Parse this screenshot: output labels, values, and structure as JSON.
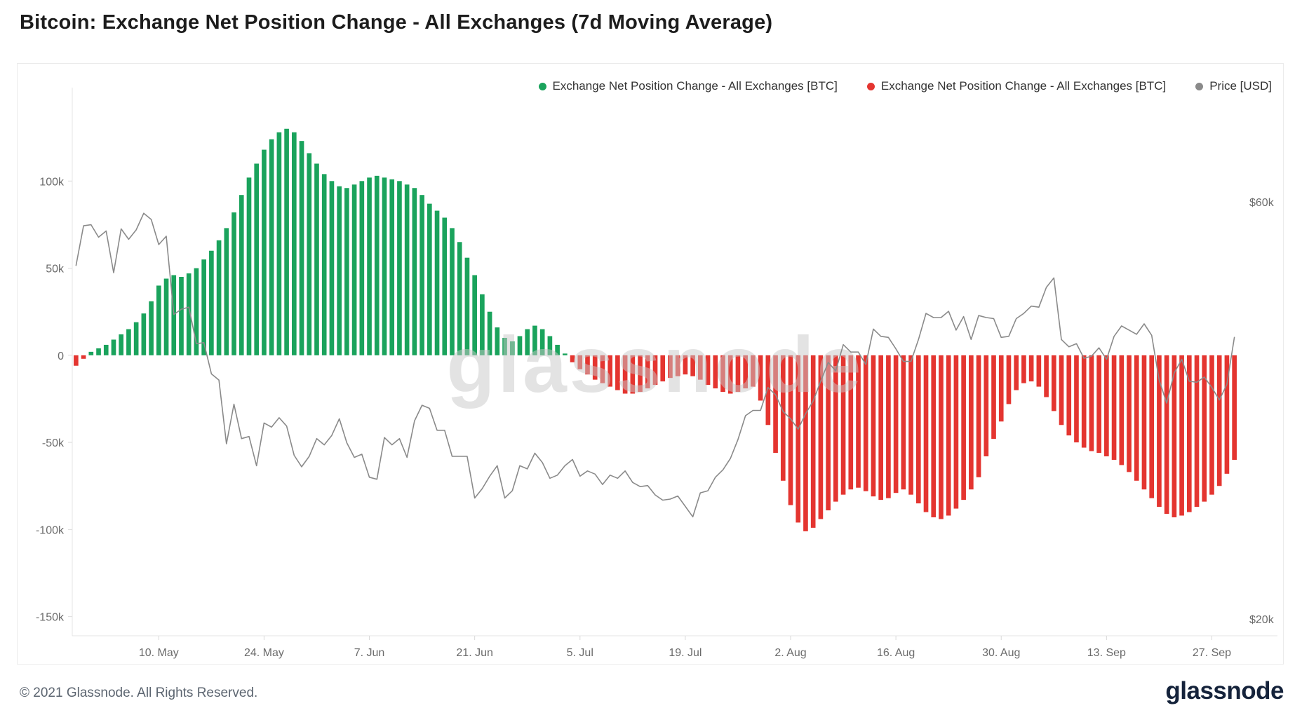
{
  "page": {
    "title": "Bitcoin: Exchange Net Position Change - All Exchanges (7d Moving Average)",
    "watermark": "glassnode",
    "footer": {
      "copyright": "© 2021 Glassnode. All Rights Reserved.",
      "brand": "glassnode"
    }
  },
  "legend": [
    {
      "label": "Exchange Net Position Change - All Exchanges [BTC]",
      "color": "#1aa35c"
    },
    {
      "label": "Exchange Net Position Change - All Exchanges [BTC]",
      "color": "#e43530"
    },
    {
      "label": "Price [USD]",
      "color": "#8a8a8a"
    }
  ],
  "chart_data": {
    "type": "bar+line",
    "title": "Bitcoin: Exchange Net Position Change - All Exchanges (7d Moving Average)",
    "start_date": "2021-04-29",
    "frequency": "daily",
    "legend_position": "top-right",
    "grid": false,
    "x_ticks": [
      {
        "index": 11,
        "label": "10. May"
      },
      {
        "index": 25,
        "label": "24. May"
      },
      {
        "index": 39,
        "label": "7. Jun"
      },
      {
        "index": 53,
        "label": "21. Jun"
      },
      {
        "index": 67,
        "label": "5. Jul"
      },
      {
        "index": 81,
        "label": "19. Jul"
      },
      {
        "index": 95,
        "label": "2. Aug"
      },
      {
        "index": 109,
        "label": "16. Aug"
      },
      {
        "index": 123,
        "label": "30. Aug"
      },
      {
        "index": 137,
        "label": "13. Sep"
      },
      {
        "index": 151,
        "label": "27. Sep"
      }
    ],
    "left_axis": {
      "ticks": [
        100000,
        50000,
        0,
        -50000,
        -100000,
        -150000
      ],
      "tick_labels": [
        "100k",
        "50k",
        "0",
        "-50k",
        "-100k",
        "-150k"
      ],
      "ylim": [
        -161000,
        148000
      ]
    },
    "right_axis": {
      "ticks": [
        60000,
        20000
      ],
      "tick_labels": [
        "$60k",
        "$20k"
      ],
      "ylim": [
        18400,
        70000
      ]
    },
    "bar_series": {
      "name": "Exchange Net Position Change - All Exchanges [BTC]",
      "positive_color": "#1aa35c",
      "negative_color": "#e43530",
      "values": [
        -6000,
        -2000,
        2000,
        4000,
        6000,
        9000,
        12000,
        15000,
        19000,
        24000,
        31000,
        40000,
        44000,
        46000,
        45000,
        47000,
        50000,
        55000,
        60000,
        66000,
        73000,
        82000,
        92000,
        102000,
        110000,
        118000,
        124000,
        128000,
        130000,
        128000,
        123000,
        116000,
        110000,
        104000,
        100000,
        97000,
        96000,
        98000,
        100000,
        102000,
        103000,
        102000,
        101000,
        100000,
        98000,
        96000,
        92000,
        87000,
        83000,
        79000,
        73000,
        65000,
        56000,
        46000,
        35000,
        25000,
        16000,
        10000,
        8000,
        11000,
        15000,
        17000,
        15000,
        11000,
        6000,
        1000,
        -4000,
        -8000,
        -11000,
        -14000,
        -16000,
        -18000,
        -20000,
        -22000,
        -22000,
        -21000,
        -19000,
        -17000,
        -15000,
        -13000,
        -12000,
        -11000,
        -12000,
        -14000,
        -17000,
        -19000,
        -21000,
        -22000,
        -21000,
        -19000,
        -18000,
        -26000,
        -40000,
        -56000,
        -72000,
        -86000,
        -96000,
        -101000,
        -99000,
        -94000,
        -89000,
        -84000,
        -80000,
        -77000,
        -76000,
        -78000,
        -81000,
        -83000,
        -82000,
        -79000,
        -77000,
        -80000,
        -85000,
        -90000,
        -93000,
        -94000,
        -92000,
        -88000,
        -83000,
        -77000,
        -70000,
        -58000,
        -48000,
        -38000,
        -28000,
        -20000,
        -16000,
        -15000,
        -18000,
        -24000,
        -32000,
        -40000,
        -46000,
        -50000,
        -53000,
        -55000,
        -56000,
        -58000,
        -60000,
        -63000,
        -67000,
        -72000,
        -77000,
        -82000,
        -87000,
        -91000,
        -93000,
        -92000,
        -90000,
        -87000,
        -84000,
        -80000,
        -75000,
        -68000,
        -60000
      ]
    },
    "line_series": {
      "name": "Price [USD]",
      "color": "#8a8a8a",
      "axis": "right",
      "values": [
        53900,
        57700,
        57800,
        56600,
        57200,
        53200,
        57400,
        56400,
        57300,
        58900,
        58300,
        55900,
        56700,
        49200,
        49700,
        49900,
        46400,
        46500,
        43500,
        42900,
        36800,
        40600,
        37300,
        37500,
        34700,
        38800,
        38400,
        39300,
        38500,
        35700,
        34600,
        35600,
        37300,
        36700,
        37600,
        39200,
        36900,
        35500,
        35800,
        33600,
        33400,
        37400,
        36700,
        37300,
        35500,
        39000,
        40500,
        40200,
        38100,
        38100,
        35600,
        35600,
        35600,
        31600,
        32500,
        33700,
        34700,
        31600,
        32300,
        34700,
        34400,
        35900,
        35000,
        33500,
        33800,
        34700,
        35300,
        33700,
        34200,
        33900,
        32900,
        33800,
        33500,
        34200,
        33100,
        32700,
        32800,
        31900,
        31400,
        31500,
        31800,
        30800,
        29800,
        32100,
        32300,
        33600,
        34300,
        35400,
        37200,
        39500,
        40000,
        40000,
        42200,
        41500,
        39900,
        39200,
        38200,
        39700,
        40900,
        42800,
        44600,
        43800,
        46300,
        45600,
        45600,
        44400,
        47800,
        47100,
        47000,
        45900,
        44700,
        44700,
        46800,
        49300,
        48900,
        48900,
        49500,
        47700,
        49000,
        46800,
        49100,
        48900,
        48800,
        47000,
        47100,
        48800,
        49300,
        50000,
        49900,
        51800,
        52700,
        46800,
        46100,
        46400,
        45000,
        45200,
        46000,
        44900,
        47100,
        48100,
        47700,
        47300,
        48300,
        47200,
        42900,
        40700,
        43600,
        44900,
        42800,
        42700,
        43200,
        42200,
        41000,
        42500,
        47000
      ]
    }
  }
}
